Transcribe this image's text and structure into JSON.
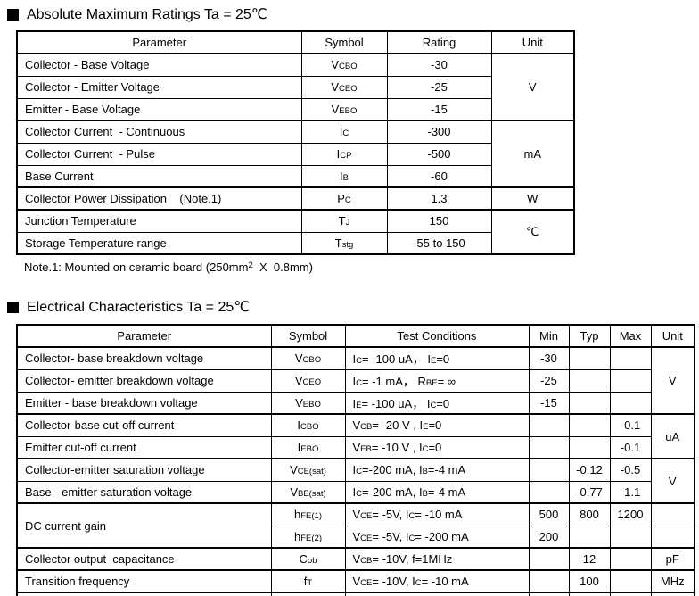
{
  "colors": {
    "background": "#ffffff",
    "text": "#000000",
    "border": "#000000"
  },
  "abs_max": {
    "title": "Absolute Maximum Ratings Ta = 25℃",
    "note": "Note.1: Mounted on ceramic board (250mm^{2}  X  0.8mm)",
    "headers": [
      "Parameter",
      "Symbol",
      "Rating",
      "Unit"
    ],
    "rows": [
      {
        "parameter": "Collector - Base Voltage",
        "symbol": "V_{CBO}",
        "rating": "-30",
        "unit": {
          "label": "V",
          "span": 3
        }
      },
      {
        "parameter": "Collector - Emitter Voltage",
        "symbol": "V_{CEO}",
        "rating": "-25"
      },
      {
        "parameter": "Emitter - Base Voltage",
        "symbol": "V_{EBO}",
        "rating": "-15"
      },
      {
        "parameter": "Collector Current  - Continuous",
        "symbol": "I_{C}",
        "rating": "-300",
        "unit": {
          "label": "mA",
          "span": 3
        },
        "group_start": true
      },
      {
        "parameter": "Collector Current  - Pulse",
        "symbol": "I_{CP}",
        "rating": "-500"
      },
      {
        "parameter": "Base Current",
        "symbol": "I_{B}",
        "rating": "-60"
      },
      {
        "parameter": "Collector Power Dissipation    (Note.1)",
        "symbol": "P_{C}",
        "rating": "1.3",
        "unit": {
          "label": "W",
          "span": 1
        },
        "group_start": true
      },
      {
        "parameter": "Junction Temperature",
        "symbol": "T_{J}",
        "rating": "150",
        "unit": {
          "label": "℃",
          "span": 2
        },
        "group_start": true
      },
      {
        "parameter": "Storage Temperature range",
        "symbol": "T_{stg}",
        "rating": "-55 to 150"
      }
    ]
  },
  "electrical": {
    "title": "Electrical Characteristics Ta = 25℃",
    "headers": [
      "Parameter",
      "Symbol",
      "Test Conditions",
      "Min",
      "Typ",
      "Max",
      "Unit"
    ],
    "rows": [
      {
        "parameter": {
          "label": "Collector- base breakdown voltage",
          "span": 1
        },
        "symbol": "V_{CBO}",
        "conditions": "I_{C}= -100 uA， I_{E}=0",
        "min": "-30",
        "typ": "",
        "max": "",
        "unit": {
          "label": "V",
          "span": 3
        }
      },
      {
        "parameter": {
          "label": "Collector- emitter breakdown voltage",
          "span": 1
        },
        "symbol": "V_{CEO}",
        "conditions": "I_{C}= -1 mA， R_{BE}= ∞",
        "min": "-25",
        "typ": "",
        "max": ""
      },
      {
        "parameter": {
          "label": "Emitter - base breakdown voltage",
          "span": 1
        },
        "symbol": "V_{EBO}",
        "conditions": "I_{E}= -100 uA， I_{C}=0",
        "min": "-15",
        "typ": "",
        "max": ""
      },
      {
        "parameter": {
          "label": "Collector-base cut-off current",
          "span": 1
        },
        "symbol": "I_{CBO}",
        "conditions": "V_{CB}= -20 V , I_{E}=0",
        "min": "",
        "typ": "",
        "max": "-0.1",
        "unit": {
          "label": "uA",
          "span": 2
        },
        "group_start": true
      },
      {
        "parameter": {
          "label": "Emitter cut-off current",
          "span": 1
        },
        "symbol": "I_{EBO}",
        "conditions": "V_{EB}= -10 V , I_{C}=0",
        "min": "",
        "typ": "",
        "max": "-0.1"
      },
      {
        "parameter": {
          "label": "Collector-emitter saturation voltage",
          "span": 1
        },
        "symbol": "V_{CE(sat)}",
        "conditions": "I_{C}=-200 mA, I_{B}=-4 mA",
        "min": "",
        "typ": "-0.12",
        "max": "-0.5",
        "unit": {
          "label": "V",
          "span": 2
        },
        "group_start": true
      },
      {
        "parameter": {
          "label": "Base - emitter saturation voltage",
          "span": 1
        },
        "symbol": "V_{BE(sat)}",
        "conditions": "I_{C}=-200 mA, I_{B}=-4 mA",
        "min": "",
        "typ": "-0.77",
        "max": "-1.1"
      },
      {
        "parameter": {
          "label": "DC current gain",
          "span": 2
        },
        "symbol": "h_{FE(1)}",
        "conditions": "V_{CE}= -5V, I_{C}= -10 mA",
        "min": "500",
        "typ": "800",
        "max": "1200",
        "unit": {
          "label": "",
          "span": 1
        },
        "group_start": true
      },
      {
        "parameter": null,
        "symbol": "h_{FE(2)}",
        "conditions": "V_{CE}= -5V, I_{C}= -200 mA",
        "min": "200",
        "typ": "",
        "max": "",
        "unit": {
          "label": "",
          "span": 1
        }
      },
      {
        "parameter": {
          "label": "Collector output  capacitance",
          "span": 1
        },
        "symbol": "C_{ob}",
        "conditions": "V_{CB}= -10V, f=1MHz",
        "min": "",
        "typ": "12",
        "max": "",
        "unit": {
          "label": "pF",
          "span": 1
        },
        "group_start": true
      },
      {
        "parameter": {
          "label": "Transition frequency",
          "span": 1
        },
        "symbol": "f_{T}",
        "conditions": "V_{CE}= -10V, I_{C}= -10 mA",
        "min": "",
        "typ": "100",
        "max": "",
        "unit": {
          "label": "MHz",
          "span": 1
        },
        "group_start": true
      }
    ]
  }
}
